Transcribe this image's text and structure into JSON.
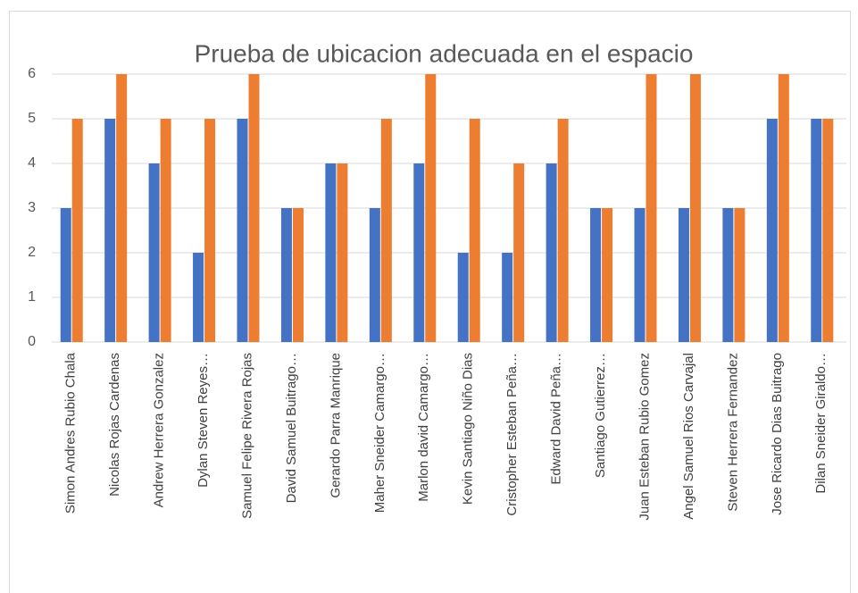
{
  "chart_data": {
    "type": "bar",
    "title": "Prueba de ubicacion adecuada en el espacio",
    "categories": [
      "Simon Andres Rubio Chala",
      "Nicolas Rojas Cardenas",
      "Andrew Herrera Gonzalez",
      "Dylan Steven Reyes…",
      "Samuel Felipe Rivera Rojas",
      "David Samuel Buitrago…",
      "Gerardo Parra Manrique",
      "Maher Sneider Camargo…",
      "Marlon david Camargo…",
      "Kevin Santiago Niño Dias",
      "Cristopher Esteban Peña…",
      "Edward David Peña…",
      "Santiago Gutierrez…",
      "Juan Esteban Rubio Gomez",
      "Angel Samuel Rios Carvajal",
      "Steven Herrera Fernandez",
      "Jose Ricardo Dias Buitrago",
      "Dilan Sneider Giraldo…"
    ],
    "series": [
      {
        "color": "#4472c4",
        "values": [
          3,
          5,
          4,
          2,
          5,
          3,
          4,
          3,
          4,
          2,
          2,
          4,
          3,
          3,
          3,
          3,
          5,
          5
        ]
      },
      {
        "color": "#ed7d31",
        "values": [
          5,
          6,
          5,
          5,
          6,
          3,
          4,
          5,
          6,
          5,
          4,
          5,
          3,
          6,
          6,
          3,
          6,
          5
        ]
      }
    ],
    "ylim": [
      0,
      6
    ],
    "yticks": [
      0,
      1,
      2,
      3,
      4,
      5,
      6
    ],
    "grid": true
  }
}
